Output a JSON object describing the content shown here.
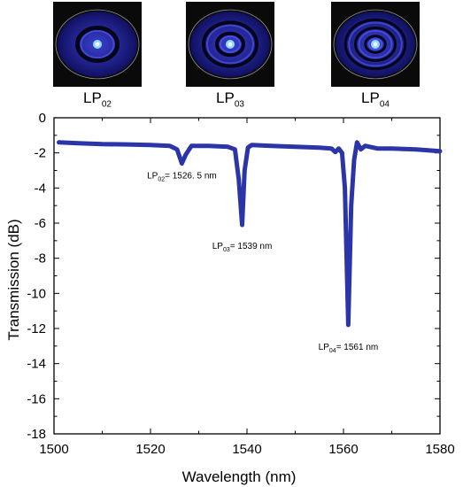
{
  "mode_panels": [
    {
      "label": "LP",
      "sub": "02",
      "rings": 2,
      "name": "LP02"
    },
    {
      "label": "LP",
      "sub": "03",
      "rings": 3,
      "name": "LP03"
    },
    {
      "label": "LP",
      "sub": "04",
      "rings": 4,
      "name": "LP04"
    }
  ],
  "chart_data": {
    "type": "line",
    "xlabel": "Wavelength (nm)",
    "ylabel": "Transmission (dB)",
    "xlim": [
      1500,
      1580
    ],
    "ylim": [
      -18,
      0
    ],
    "x_ticks": [
      1500,
      1520,
      1540,
      1560,
      1580
    ],
    "y_ticks": [
      0,
      -2,
      -4,
      -6,
      -8,
      -10,
      -12,
      -14,
      -16,
      -18
    ],
    "grid": false,
    "line_color": "#2b35a8",
    "series": [
      {
        "name": "",
        "points": [
          [
            1501,
            -1.4
          ],
          [
            1505,
            -1.45
          ],
          [
            1510,
            -1.5
          ],
          [
            1515,
            -1.52
          ],
          [
            1520,
            -1.55
          ],
          [
            1524,
            -1.6
          ],
          [
            1525.5,
            -1.8
          ],
          [
            1526.5,
            -2.6
          ],
          [
            1527.3,
            -2.1
          ],
          [
            1528.5,
            -1.6
          ],
          [
            1532,
            -1.6
          ],
          [
            1536,
            -1.65
          ],
          [
            1537.5,
            -1.8
          ],
          [
            1538.3,
            -3.5
          ],
          [
            1539,
            -6.1
          ],
          [
            1539.5,
            -3.0
          ],
          [
            1540.2,
            -1.7
          ],
          [
            1541,
            -1.55
          ],
          [
            1545,
            -1.6
          ],
          [
            1550,
            -1.65
          ],
          [
            1555,
            -1.7
          ],
          [
            1557.5,
            -1.75
          ],
          [
            1558.3,
            -1.95
          ],
          [
            1559,
            -1.75
          ],
          [
            1559.7,
            -2.0
          ],
          [
            1560.3,
            -4.0
          ],
          [
            1561,
            -11.8
          ],
          [
            1561.6,
            -5.0
          ],
          [
            1562.2,
            -2.4
          ],
          [
            1562.8,
            -1.4
          ],
          [
            1563.6,
            -1.8
          ],
          [
            1564.5,
            -1.6
          ],
          [
            1567,
            -1.75
          ],
          [
            1570,
            -1.75
          ],
          [
            1575,
            -1.8
          ],
          [
            1580,
            -1.9
          ]
        ]
      }
    ],
    "annotations": [
      {
        "prefix": "LP",
        "sub": "02",
        "text": "= 1526. 5 nm",
        "x": 1526.5,
        "y": -2.85
      },
      {
        "prefix": "LP",
        "sub": "03",
        "text": "= 1539 nm",
        "x": 1539,
        "y": -6.85
      },
      {
        "prefix": "LP",
        "sub": "04",
        "text": "= 1561 nm",
        "x": 1561,
        "y": -12.6
      }
    ]
  }
}
